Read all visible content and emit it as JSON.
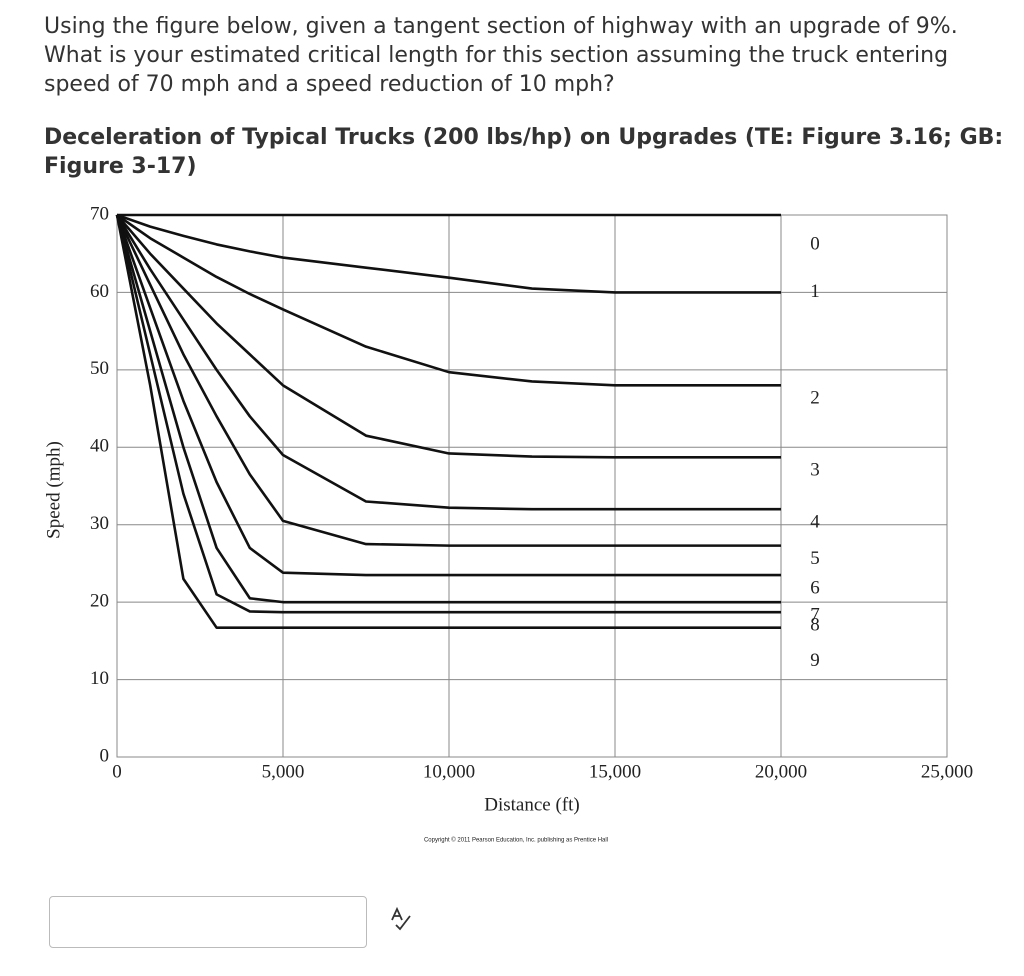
{
  "question": {
    "lines": [
      "Using the figure below, given a tangent section of highway with an upgrade of 9%.",
      "What is your estimated critical length for this section assuming the truck entering",
      "speed of 70 mph and a speed reduction of 10 mph?"
    ]
  },
  "figure_title": {
    "lines": [
      "Deceleration of Typical Trucks (200 lbs/hp) on Upgrades (TE: Figure 3.16; GB:",
      "Figure 3-17)"
    ]
  },
  "chart_data": {
    "type": "line",
    "x_label": "Distance (ft)",
    "y_label": "Speed (mph)",
    "note": "Copyright © 2011 Pearson Education, Inc. publishing as Prentice Hall",
    "x": [
      0,
      1000,
      2000,
      3000,
      4000,
      5000,
      7500,
      10000,
      12500,
      15000,
      20000
    ],
    "xlim": [
      0,
      25000
    ],
    "ylim": [
      0,
      70
    ],
    "grid": true,
    "xticks": [
      0,
      {
        "value": 5000,
        "label": "5,000"
      },
      {
        "value": 10000,
        "label": "10,000"
      },
      {
        "value": 15000,
        "label": "15,000"
      },
      {
        "value": 20000,
        "label": "20,000"
      },
      {
        "value": 25000,
        "label": "25,000"
      }
    ],
    "yticks": [
      0,
      10,
      20,
      30,
      40,
      50,
      60,
      70
    ],
    "series": [
      {
        "name": "0",
        "color": "#111111",
        "values": [
          70,
          70,
          70,
          70,
          70,
          70,
          70,
          70,
          70,
          70,
          70
        ]
      },
      {
        "name": "1",
        "color": "#111111",
        "values": [
          70,
          68.5,
          67.3,
          66.2,
          65.3,
          64.5,
          63.2,
          61.9,
          60.5,
          60,
          60
        ]
      },
      {
        "name": "2",
        "color": "#111111",
        "values": [
          70,
          67,
          64.5,
          62,
          59.8,
          57.8,
          53,
          49.7,
          48.5,
          48,
          48
        ]
      },
      {
        "name": "3",
        "color": "#111111",
        "values": [
          70,
          65,
          60.5,
          56,
          52,
          48,
          41.5,
          39.2,
          38.8,
          38.7,
          38.7
        ]
      },
      {
        "name": "4",
        "color": "#111111",
        "values": [
          70,
          63,
          56.5,
          50,
          44,
          39,
          33,
          32.2,
          32,
          32,
          32
        ]
      },
      {
        "name": "5",
        "color": "#111111",
        "values": [
          70,
          61,
          52,
          44,
          36.5,
          30.5,
          27.5,
          27.3,
          27.3,
          27.3,
          27.3
        ]
      },
      {
        "name": "6",
        "color": "#111111",
        "values": [
          70,
          58,
          46,
          35.5,
          27,
          23.8,
          23.5,
          23.5,
          23.5,
          23.5,
          23.5
        ]
      },
      {
        "name": "7",
        "color": "#111111",
        "values": [
          70,
          55,
          40,
          27,
          20.5,
          20,
          20,
          20,
          20,
          20,
          20
        ]
      },
      {
        "name": "8",
        "color": "#111111",
        "values": [
          70,
          52,
          34,
          21,
          18.8,
          18.7,
          18.7,
          18.7,
          18.7,
          18.7,
          18.7
        ]
      },
      {
        "name": "9",
        "color": "#111111",
        "values": [
          70,
          48,
          23,
          16.7,
          16.7,
          16.7,
          16.7,
          16.7,
          16.7,
          16.7,
          16.7
        ]
      }
    ]
  }
}
